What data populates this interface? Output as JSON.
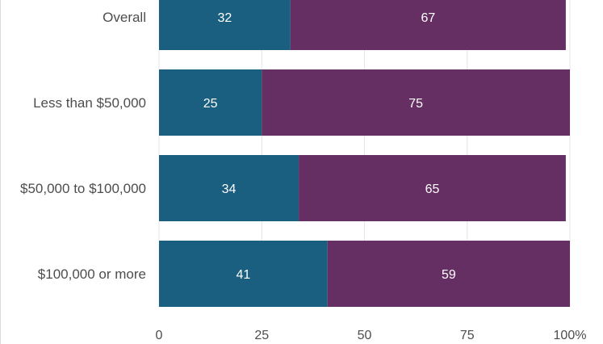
{
  "chart_data": {
    "type": "bar",
    "orientation": "horizontal",
    "stacked": true,
    "categories": [
      "Overall",
      "Less than $50,000",
      "$50,000 to $100,000",
      "$100,000 or more"
    ],
    "series": [
      {
        "values": [
          32,
          25,
          34,
          41
        ],
        "color": "#1a5e80"
      },
      {
        "values": [
          67,
          75,
          65,
          59
        ],
        "color": "#662f63"
      }
    ],
    "xlim": [
      0,
      100
    ],
    "x_ticks": [
      "0",
      "25",
      "50",
      "75",
      "100%"
    ],
    "grid": true,
    "legend": "none"
  }
}
